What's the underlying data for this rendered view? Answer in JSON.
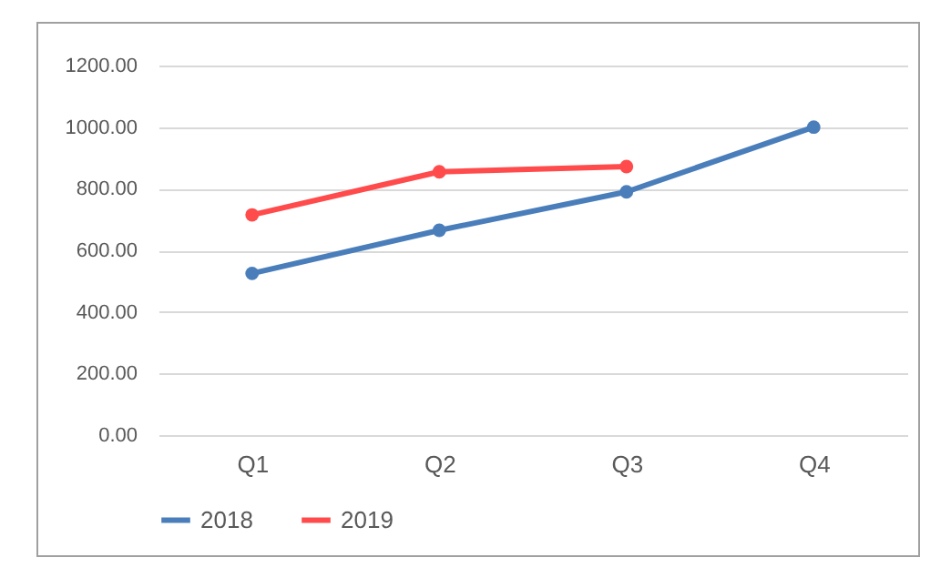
{
  "chart_data": {
    "type": "line",
    "categories": [
      "Q1",
      "Q2",
      "Q3",
      "Q4"
    ],
    "series": [
      {
        "name": "2018",
        "color": "#4a7ebb",
        "values": [
          525,
          665,
          790,
          1000
        ]
      },
      {
        "name": "2019",
        "color": "#ff4b4b",
        "values": [
          715,
          855,
          872,
          null
        ]
      }
    ],
    "ylim": [
      0,
      1200
    ],
    "yticks": [
      {
        "value": 0,
        "label": "0.00"
      },
      {
        "value": 200,
        "label": "200.00"
      },
      {
        "value": 400,
        "label": "400.00"
      },
      {
        "value": 600,
        "label": "600.00"
      },
      {
        "value": 800,
        "label": "800.00"
      },
      {
        "value": 1000,
        "label": "1000.00"
      },
      {
        "value": 1200,
        "label": "1200.00"
      }
    ],
    "grid": "y",
    "legend": "bottom",
    "marker": "circle",
    "line_style": "solid"
  }
}
